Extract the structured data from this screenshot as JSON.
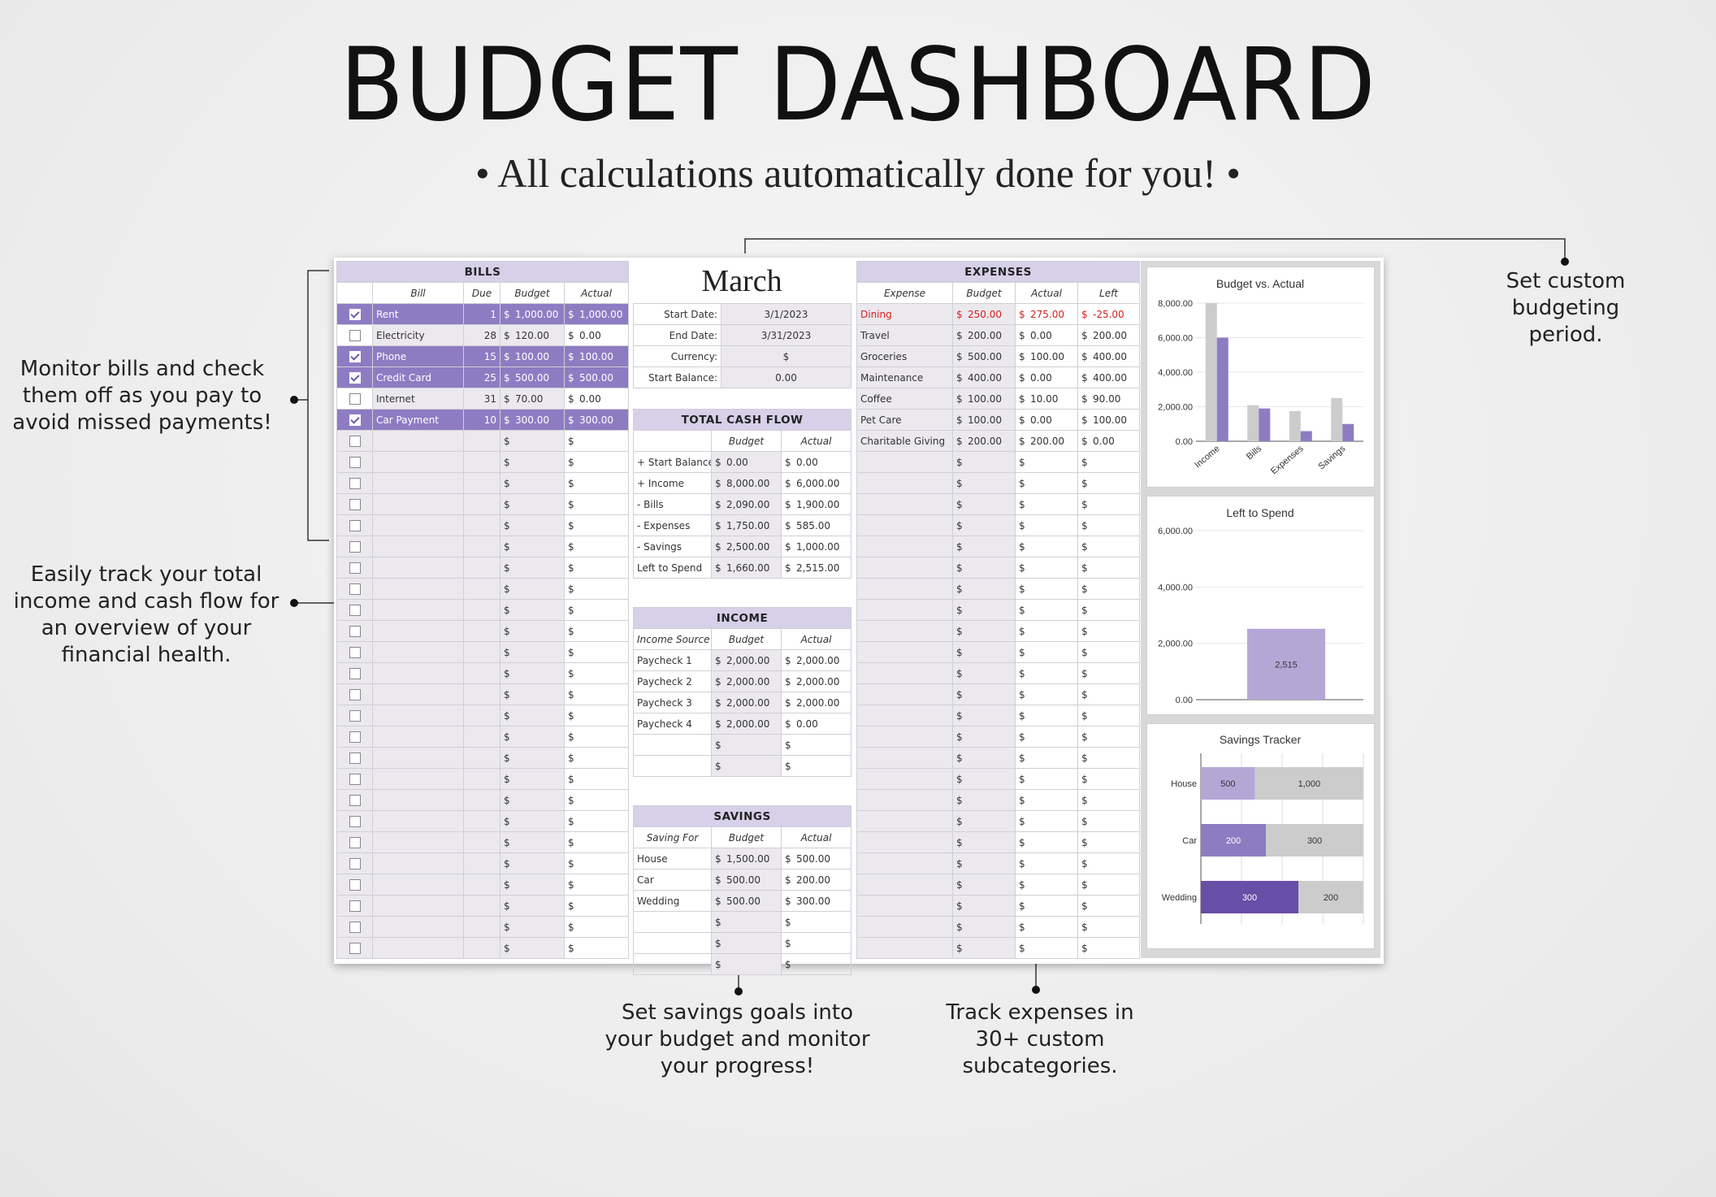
{
  "title": "BUDGET DASHBOARD",
  "subtitle": "• All calculations automatically done for you! •",
  "callouts": {
    "bills": "Monitor bills and check them off as you pay to avoid missed payments!",
    "cashflow": "Easily track your total income and cash flow for an overview of your financial health.",
    "period": "Set custom budgeting period.",
    "savings": "Set savings goals into your budget and monitor your progress!",
    "expenses": "Track expenses in 30+ custom subcategories."
  },
  "bills": {
    "header": "BILLS",
    "columns": [
      "Bill",
      "Due",
      "Budget",
      "Actual"
    ],
    "rows": [
      {
        "name": "Rent",
        "due": "1",
        "budget": "1,000.00",
        "actual": "1,000.00",
        "paid": true
      },
      {
        "name": "Electricity",
        "due": "28",
        "budget": "120.00",
        "actual": "0.00",
        "paid": false
      },
      {
        "name": "Phone",
        "due": "15",
        "budget": "100.00",
        "actual": "100.00",
        "paid": true
      },
      {
        "name": "Credit Card",
        "due": "25",
        "budget": "500.00",
        "actual": "500.00",
        "paid": true
      },
      {
        "name": "Internet",
        "due": "31",
        "budget": "70.00",
        "actual": "0.00",
        "paid": false
      },
      {
        "name": "Car Payment",
        "due": "10",
        "budget": "300.00",
        "actual": "300.00",
        "paid": true
      }
    ],
    "empty_rows": 25,
    "currency": "$"
  },
  "period": {
    "month": "March",
    "fields": [
      {
        "label": "Start Date:",
        "value": "3/1/2023"
      },
      {
        "label": "End Date:",
        "value": "3/31/2023"
      },
      {
        "label": "Currency:",
        "value": "$"
      },
      {
        "label": "Start Balance:",
        "value": "0.00"
      }
    ]
  },
  "cashflow": {
    "header": "TOTAL CASH FLOW",
    "columns": [
      "",
      "Budget",
      "Actual"
    ],
    "rows": [
      {
        "label": "+ Start Balance",
        "budget": "0.00",
        "actual": "0.00"
      },
      {
        "label": "+ Income",
        "budget": "8,000.00",
        "actual": "6,000.00"
      },
      {
        "label": "- Bills",
        "budget": "2,090.00",
        "actual": "1,900.00"
      },
      {
        "label": "- Expenses",
        "budget": "1,750.00",
        "actual": "585.00"
      },
      {
        "label": "- Savings",
        "budget": "2,500.00",
        "actual": "1,000.00"
      },
      {
        "label": "Left to Spend",
        "budget": "1,660.00",
        "actual": "2,515.00"
      }
    ]
  },
  "income": {
    "header": "INCOME",
    "columns": [
      "Income Source",
      "Budget",
      "Actual"
    ],
    "rows": [
      {
        "label": "Paycheck 1",
        "budget": "2,000.00",
        "actual": "2,000.00"
      },
      {
        "label": "Paycheck 2",
        "budget": "2,000.00",
        "actual": "2,000.00"
      },
      {
        "label": "Paycheck 3",
        "budget": "2,000.00",
        "actual": "2,000.00"
      },
      {
        "label": "Paycheck 4",
        "budget": "2,000.00",
        "actual": "0.00"
      }
    ],
    "empty_rows": 2
  },
  "savings": {
    "header": "SAVINGS",
    "columns": [
      "Saving For",
      "Budget",
      "Actual"
    ],
    "rows": [
      {
        "label": "House",
        "budget": "1,500.00",
        "actual": "500.00"
      },
      {
        "label": "Car",
        "budget": "500.00",
        "actual": "200.00"
      },
      {
        "label": "Wedding",
        "budget": "500.00",
        "actual": "300.00"
      }
    ],
    "empty_rows": 3
  },
  "expenses": {
    "header": "EXPENSES",
    "columns": [
      "Expense",
      "Budget",
      "Actual",
      "Left"
    ],
    "rows": [
      {
        "label": "Dining",
        "budget": "250.00",
        "actual": "275.00",
        "left": "-25.00",
        "over": true
      },
      {
        "label": "Travel",
        "budget": "200.00",
        "actual": "0.00",
        "left": "200.00",
        "over": false
      },
      {
        "label": "Groceries",
        "budget": "500.00",
        "actual": "100.00",
        "left": "400.00",
        "over": false
      },
      {
        "label": "Maintenance",
        "budget": "400.00",
        "actual": "0.00",
        "left": "400.00",
        "over": false
      },
      {
        "label": "Coffee",
        "budget": "100.00",
        "actual": "10.00",
        "left": "90.00",
        "over": false
      },
      {
        "label": "Pet Care",
        "budget": "100.00",
        "actual": "0.00",
        "left": "100.00",
        "over": false
      },
      {
        "label": "Charitable Giving",
        "budget": "200.00",
        "actual": "200.00",
        "left": "0.00",
        "over": false
      }
    ],
    "empty_rows": 24
  },
  "colors": {
    "accent": "#8e7cc3",
    "header": "#d6d0e8",
    "light_purple": "#b4a7d6",
    "dark_purple": "#674ea7",
    "gray": "#cccccc",
    "over_budget": "#d62020"
  },
  "chart_data": [
    {
      "type": "bar",
      "title": "Budget vs. Actual",
      "categories": [
        "Income",
        "Bills",
        "Expenses",
        "Savings"
      ],
      "series": [
        {
          "values": [
            8000,
            2090,
            1750,
            2500
          ]
        },
        {
          "values": [
            6000,
            1900,
            585,
            1000
          ]
        }
      ],
      "ylim": [
        0,
        8000
      ],
      "yticks": [
        "0.00",
        "2,000.00",
        "4,000.00",
        "6,000.00",
        "8,000.00"
      ]
    },
    {
      "type": "bar",
      "title": "Left to Spend",
      "values": [
        2515
      ],
      "data_label": "2,515",
      "ylim": [
        0,
        6000
      ],
      "yticks": [
        "0.00",
        "2,000.00",
        "4,000.00",
        "6,000.00"
      ]
    },
    {
      "type": "bar",
      "orientation": "horizontal-stacked",
      "title": "Savings Tracker",
      "categories": [
        "House",
        "Car",
        "Wedding"
      ],
      "series": [
        {
          "values": [
            500,
            200,
            300
          ],
          "labels": [
            "500",
            "200",
            "300"
          ]
        },
        {
          "values": [
            1000,
            300,
            200
          ],
          "labels": [
            "1,000",
            "300",
            "200"
          ]
        }
      ]
    }
  ]
}
